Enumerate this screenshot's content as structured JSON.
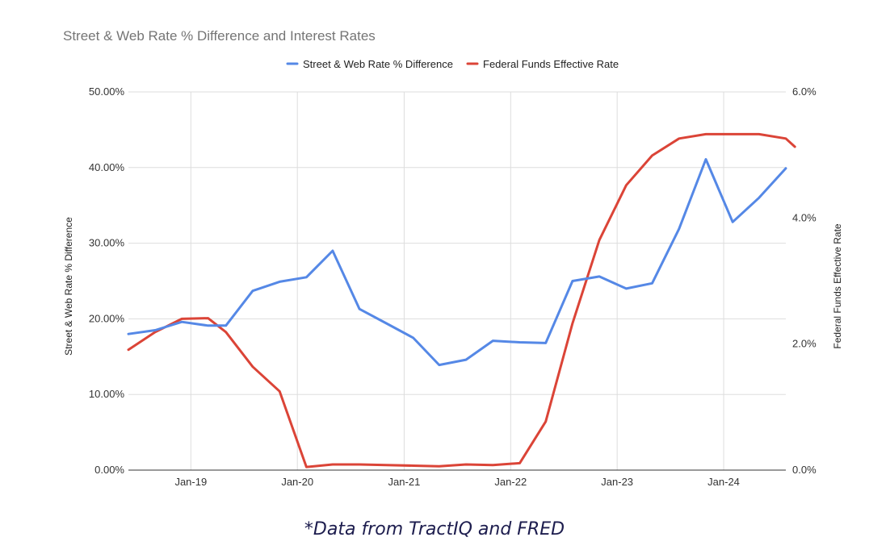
{
  "chart_data": {
    "type": "line",
    "title": "Street & Web Rate % Difference and Interest Rates",
    "ylabel_left": "Street & Web Rate % Difference",
    "ylabel_right": "Federal Funds Effective Rate",
    "left_ylim": [
      0,
      50
    ],
    "right_ylim": [
      0,
      6
    ],
    "left_ticks": [
      "0.00%",
      "10.00%",
      "20.00%",
      "30.00%",
      "40.00%",
      "50.00%"
    ],
    "left_tick_values": [
      0,
      10,
      20,
      30,
      40,
      50
    ],
    "right_ticks": [
      "0.0%",
      "2.0%",
      "4.0%",
      "6.0%"
    ],
    "right_tick_values": [
      0,
      2,
      4,
      6
    ],
    "x_range": [
      "2018-06-01",
      "2024-08-01"
    ],
    "x_ticks": [
      {
        "label": "Jan-19",
        "date": "2019-01-01"
      },
      {
        "label": "Jan-20",
        "date": "2020-01-01"
      },
      {
        "label": "Jan-21",
        "date": "2021-01-01"
      },
      {
        "label": "Jan-22",
        "date": "2022-01-01"
      },
      {
        "label": "Jan-23",
        "date": "2023-01-01"
      },
      {
        "label": "Jan-24",
        "date": "2024-01-01"
      }
    ],
    "grid": true,
    "legend_position": "top-center",
    "series": [
      {
        "name": "Street & Web Rate % Difference",
        "axis": "left",
        "color": "#5588e6",
        "points": [
          [
            "2018-06-01",
            18.0
          ],
          [
            "2018-09-01",
            18.5
          ],
          [
            "2018-12-01",
            19.6
          ],
          [
            "2019-03-01",
            19.1
          ],
          [
            "2019-05-01",
            19.1
          ],
          [
            "2019-08-01",
            23.7
          ],
          [
            "2019-11-01",
            24.9
          ],
          [
            "2020-02-01",
            25.5
          ],
          [
            "2020-05-01",
            29.0
          ],
          [
            "2020-08-01",
            21.3
          ],
          [
            "2020-11-01",
            19.4
          ],
          [
            "2021-02-01",
            17.5
          ],
          [
            "2021-05-01",
            13.9
          ],
          [
            "2021-08-01",
            14.6
          ],
          [
            "2021-11-01",
            17.1
          ],
          [
            "2022-02-01",
            16.9
          ],
          [
            "2022-05-01",
            16.8
          ],
          [
            "2022-08-01",
            25.0
          ],
          [
            "2022-11-01",
            25.6
          ],
          [
            "2023-02-01",
            24.0
          ],
          [
            "2023-05-01",
            24.7
          ],
          [
            "2023-08-01",
            31.9
          ],
          [
            "2023-11-01",
            41.1
          ],
          [
            "2024-02-01",
            32.8
          ],
          [
            "2024-05-01",
            36.0
          ],
          [
            "2024-08-01",
            39.9
          ]
        ]
      },
      {
        "name": "Federal Funds Effective Rate",
        "axis": "right",
        "color": "#db4437",
        "points": [
          [
            "2018-06-01",
            1.91
          ],
          [
            "2018-09-01",
            2.19
          ],
          [
            "2018-12-01",
            2.4
          ],
          [
            "2019-03-01",
            2.41
          ],
          [
            "2019-05-01",
            2.19
          ],
          [
            "2019-08-01",
            1.64
          ],
          [
            "2019-11-01",
            1.25
          ],
          [
            "2020-02-01",
            0.05
          ],
          [
            "2020-05-01",
            0.09
          ],
          [
            "2020-08-01",
            0.09
          ],
          [
            "2020-11-01",
            0.08
          ],
          [
            "2021-02-01",
            0.07
          ],
          [
            "2021-05-01",
            0.06
          ],
          [
            "2021-08-01",
            0.09
          ],
          [
            "2021-11-01",
            0.08
          ],
          [
            "2022-02-01",
            0.11
          ],
          [
            "2022-05-01",
            0.77
          ],
          [
            "2022-08-01",
            2.33
          ],
          [
            "2022-11-01",
            3.65
          ],
          [
            "2023-02-01",
            4.52
          ],
          [
            "2023-05-01",
            4.99
          ],
          [
            "2023-08-01",
            5.26
          ],
          [
            "2023-11-01",
            5.33
          ],
          [
            "2024-02-01",
            5.33
          ],
          [
            "2024-05-01",
            5.33
          ],
          [
            "2024-08-01",
            5.26
          ],
          [
            "2024-09-01",
            5.13
          ]
        ]
      }
    ]
  },
  "footnote": "*Data from TractIQ and FRED"
}
